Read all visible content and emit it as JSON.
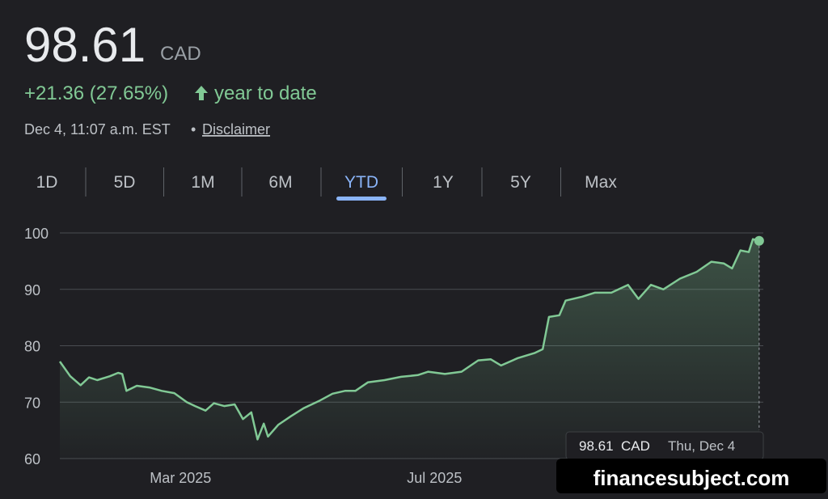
{
  "header": {
    "price": "98.61",
    "currency": "CAD",
    "change": "+21.36 (27.65%)",
    "period": "year to date",
    "timestamp": "Dec 4, 11:07 a.m. EST",
    "separator": "•",
    "disclaimer": "Disclaimer"
  },
  "tabs": {
    "items": [
      "1D",
      "5D",
      "1M",
      "6M",
      "YTD",
      "1Y",
      "5Y",
      "Max"
    ],
    "selected": 4
  },
  "chart_data": {
    "type": "line",
    "color": "#81c995",
    "grid": true,
    "x": [
      "2025-01-02",
      "2025-01-07",
      "2025-01-12",
      "2025-01-16",
      "2025-01-20",
      "2025-01-26",
      "2025-01-30",
      "2025-02-01",
      "2025-02-03",
      "2025-02-08",
      "2025-02-14",
      "2025-02-20",
      "2025-02-26",
      "2025-03-04",
      "2025-03-08",
      "2025-03-13",
      "2025-03-17",
      "2025-03-22",
      "2025-03-27",
      "2025-03-31",
      "2025-04-04",
      "2025-04-07",
      "2025-04-10",
      "2025-04-12",
      "2025-04-17",
      "2025-04-23",
      "2025-04-29",
      "2025-05-07",
      "2025-05-13",
      "2025-05-19",
      "2025-05-24",
      "2025-05-30",
      "2025-06-07",
      "2025-06-15",
      "2025-06-23",
      "2025-06-28",
      "2025-07-06",
      "2025-07-14",
      "2025-07-22",
      "2025-07-28",
      "2025-08-02",
      "2025-08-10",
      "2025-08-18",
      "2025-08-22",
      "2025-08-25",
      "2025-08-30",
      "2025-09-02",
      "2025-09-10",
      "2025-09-16",
      "2025-09-24",
      "2025-10-02",
      "2025-10-07",
      "2025-10-13",
      "2025-10-19",
      "2025-10-27",
      "2025-11-04",
      "2025-11-11",
      "2025-11-17",
      "2025-11-21",
      "2025-11-25",
      "2025-11-29",
      "2025-12-01",
      "2025-12-04"
    ],
    "values": [
      77.2,
      74.6,
      73.0,
      74.4,
      73.9,
      74.6,
      75.2,
      75.0,
      72.0,
      72.9,
      72.6,
      72.0,
      71.6,
      70.0,
      69.3,
      68.5,
      69.8,
      69.3,
      69.6,
      67.0,
      68.2,
      63.4,
      66.2,
      63.9,
      66.0,
      67.5,
      68.9,
      70.3,
      71.5,
      72.0,
      72.0,
      73.5,
      73.9,
      74.5,
      74.8,
      75.4,
      75.0,
      75.4,
      77.4,
      77.6,
      76.5,
      77.8,
      78.7,
      79.4,
      85.1,
      85.4,
      88.0,
      88.7,
      89.4,
      89.4,
      90.8,
      88.3,
      90.8,
      90.0,
      91.9,
      93.1,
      94.9,
      94.6,
      93.7,
      96.9,
      96.6,
      98.9,
      98.61
    ],
    "xlim": [
      "2025-01-02",
      "2025-12-06"
    ],
    "xticks": [
      {
        "value": "2025-03-01",
        "label": "Mar 2025"
      },
      {
        "value": "2025-07-01",
        "label": "Jul 2025"
      }
    ],
    "ylim": [
      60,
      100
    ],
    "yticks": [
      60,
      70,
      80,
      90,
      100
    ],
    "tooltip": {
      "date": "Thu, Dec 4"
    }
  },
  "watermark": "financesubject.com"
}
